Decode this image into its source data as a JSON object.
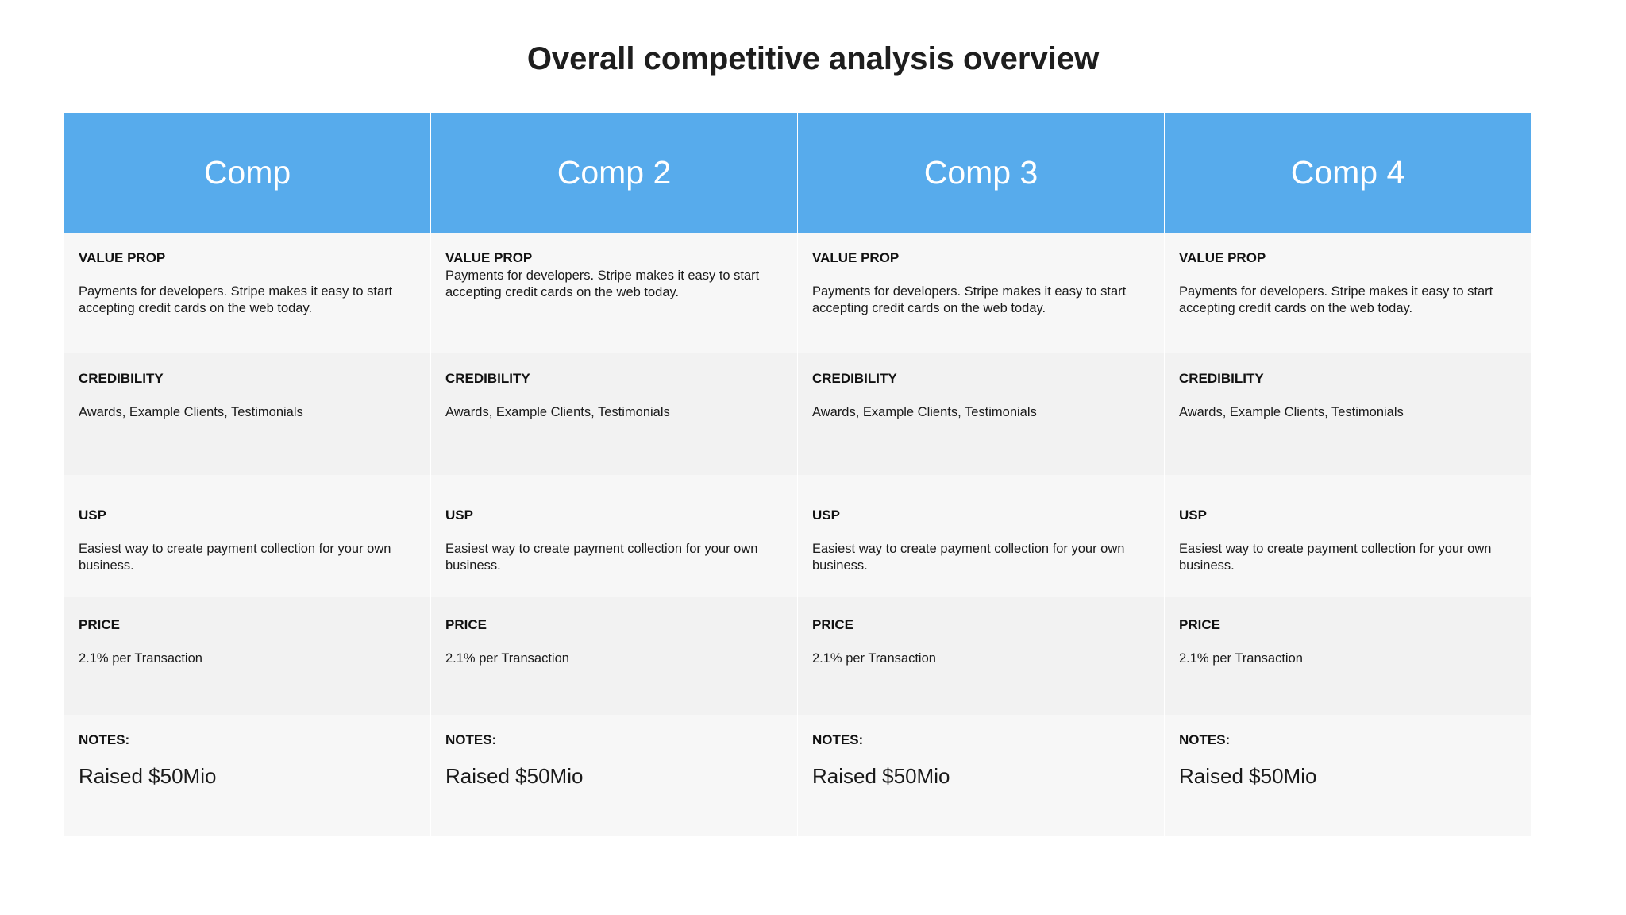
{
  "title": "Overall competitive analysis overview",
  "header_color": "#57abec",
  "row_labels": {
    "value_prop": "VALUE PROP",
    "credibility": "CREDIBILITY",
    "usp": "USP",
    "price": "PRICE",
    "notes": "NOTES:"
  },
  "competitors": [
    {
      "name": "Comp",
      "value_prop": "Payments for developers. Stripe makes it easy to start accepting credit cards on the web today.",
      "credibility": "Awards, Example Clients, Testimonials",
      "usp": "Easiest way to create payment collection for your own business.",
      "price": "2.1% per Transaction",
      "notes": "Raised $50Mio"
    },
    {
      "name": "Comp 2",
      "value_prop": "Payments for developers. Stripe makes it easy to start accepting credit cards on the web today.",
      "credibility": "Awards, Example Clients, Testimonials",
      "usp": "Easiest way to create payment collection for your own business.",
      "price": "2.1% per Transaction",
      "notes": "Raised $50Mio"
    },
    {
      "name": "Comp 3",
      "value_prop": "Payments for developers. Stripe makes it easy to start accepting credit cards on the web today.",
      "credibility": "Awards, Example Clients, Testimonials",
      "usp": "Easiest way to create payment collection for your own business.",
      "price": "2.1% per Transaction",
      "notes": "Raised $50Mio"
    },
    {
      "name": "Comp 4",
      "value_prop": "Payments for developers. Stripe makes it easy to start accepting credit cards on the web today.",
      "credibility": "Awards, Example Clients, Testimonials",
      "usp": "Easiest way to create payment collection for your own business.",
      "price": "2.1% per Transaction",
      "notes": "Raised $50Mio"
    }
  ]
}
